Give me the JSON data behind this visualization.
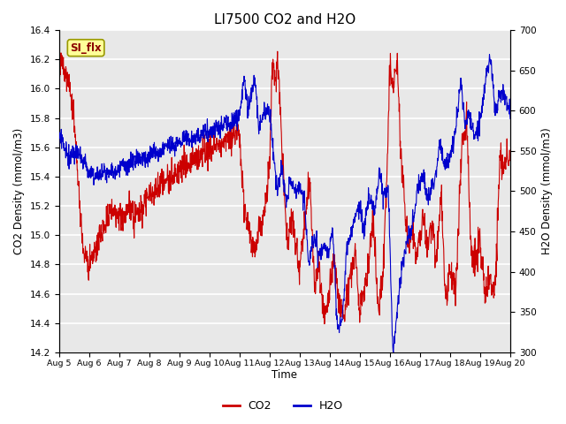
{
  "title": "LI7500 CO2 and H2O",
  "xlabel": "Time",
  "ylabel_left": "CO2 Density (mmol/m3)",
  "ylabel_right": "H2O Density (mmol/m3)",
  "ylim_left": [
    14.2,
    16.4
  ],
  "ylim_right": [
    300,
    700
  ],
  "yticks_left": [
    14.2,
    14.4,
    14.6,
    14.8,
    15.0,
    15.2,
    15.4,
    15.6,
    15.8,
    16.0,
    16.2,
    16.4
  ],
  "yticks_right": [
    300,
    350,
    400,
    450,
    500,
    550,
    600,
    650,
    700
  ],
  "xtick_labels": [
    "Aug 5",
    "Aug 6",
    "Aug 7",
    "Aug 8",
    "Aug 9",
    "Aug 10",
    "Aug 11",
    "Aug 12",
    "Aug 13",
    "Aug 14",
    "Aug 15",
    "Aug 16",
    "Aug 17",
    "Aug 18",
    "Aug 19",
    "Aug 20"
  ],
  "co2_color": "#cc0000",
  "h2o_color": "#0000cc",
  "legend_label_co2": "CO2",
  "legend_label_h2o": "H2O",
  "annotation_text": "SI_flx",
  "annotation_bg": "#ffff99",
  "annotation_border": "#999900",
  "background_color": "#e8e8e8",
  "grid_color": "#ffffff",
  "title_fontsize": 11
}
